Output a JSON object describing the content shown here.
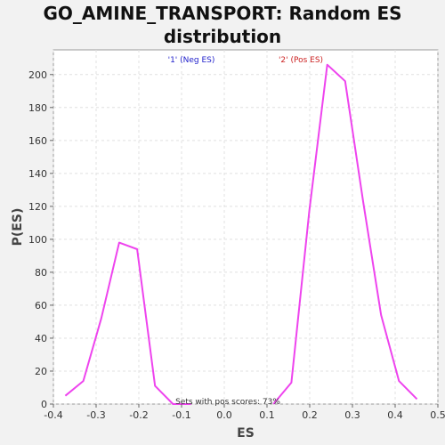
{
  "chart_data": {
    "type": "line",
    "title_lines": [
      "GO_AMINE_TRANSPORT: Random ES",
      "distribution"
    ],
    "xlabel": "ES",
    "ylabel": "P(ES)",
    "xlim": [
      -0.4,
      0.5
    ],
    "ylim": [
      0,
      215
    ],
    "xticks": [
      -0.4,
      -0.3,
      -0.2,
      -0.1,
      0.0,
      0.1,
      0.2,
      0.3,
      0.4,
      0.5
    ],
    "xtick_labels": [
      "-0.4",
      "-0.3",
      "-0.2",
      "-0.1",
      "0.0",
      "0.1",
      "0.2",
      "0.3",
      "0.4",
      "0.5"
    ],
    "yticks": [
      0,
      20,
      40,
      60,
      80,
      100,
      120,
      140,
      160,
      180,
      200
    ],
    "ytick_labels": [
      "0",
      "20",
      "40",
      "60",
      "80",
      "100",
      "120",
      "140",
      "160",
      "180",
      "200"
    ],
    "grid": true,
    "series": [
      {
        "color": "#ee44ee",
        "x": [
          -0.372,
          -0.33,
          -0.288,
          -0.246,
          -0.204,
          -0.162,
          -0.12,
          -0.078
        ],
        "y": [
          5,
          14,
          52,
          98,
          94,
          11,
          0,
          0
        ]
      },
      {
        "color": "#ee44ee",
        "x": [
          0.115,
          0.157,
          0.199,
          0.241,
          0.283,
          0.325,
          0.367,
          0.409,
          0.451
        ],
        "y": [
          0,
          13,
          117,
          206,
          196,
          123,
          54,
          14,
          3
        ]
      }
    ],
    "legend": [
      {
        "label": "'1' (Neg ES)",
        "color": "#2222cc"
      },
      {
        "label": "'2' (Pos ES)",
        "color": "#cc2222"
      }
    ],
    "annotation": "Sets with pos scores: 73%"
  }
}
